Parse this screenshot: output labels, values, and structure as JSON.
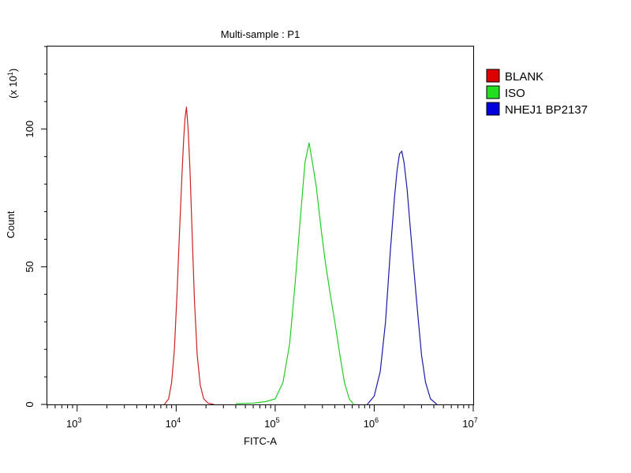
{
  "chart_data": {
    "type": "line",
    "title": "Multi-sample : P1",
    "xlabel": "FITC-A",
    "ylabel": "Count",
    "y_multiplier": "(x 10",
    "y_multiplier_exp": "1",
    "y_multiplier_close": ")",
    "x_scale": "log",
    "xlim": [
      500,
      10000000
    ],
    "ylim": [
      0,
      130
    ],
    "x_ticks": [
      {
        "base": "10",
        "exp": "3",
        "value": 1000
      },
      {
        "base": "10",
        "exp": "4",
        "value": 10000
      },
      {
        "base": "10",
        "exp": "5",
        "value": 100000
      },
      {
        "base": "10",
        "exp": "6",
        "value": 1000000
      },
      {
        "base": "10",
        "exp": "7",
        "value": 10000000
      }
    ],
    "y_ticks": [
      {
        "label": "0",
        "value": 0
      },
      {
        "label": "50",
        "value": 50
      },
      {
        "label": "100",
        "value": 100
      }
    ],
    "grid": false,
    "legend_position": "right",
    "series": [
      {
        "name": "BLANK",
        "color": "#cc2222",
        "legend_color": "#dd0000",
        "x": [
          7600,
          8400,
          9000,
          9600,
          10200,
          10800,
          11400,
          11900,
          12300,
          12700,
          13200,
          13800,
          14500,
          15300,
          16300,
          17500,
          19000,
          21000,
          24000
        ],
        "y": [
          0,
          2,
          8,
          20,
          40,
          62,
          82,
          96,
          104,
          108,
          100,
          85,
          62,
          38,
          18,
          7,
          2,
          0.5,
          0
        ]
      },
      {
        "name": "ISO",
        "color": "#22cc22",
        "legend_color": "#22dd22",
        "x": [
          40000,
          60000,
          80000,
          100000,
          120000,
          140000,
          160000,
          180000,
          200000,
          220000,
          240000,
          260000,
          290000,
          320000,
          360000,
          400000,
          450000,
          500000,
          560000,
          620000
        ],
        "y": [
          0.3,
          0.5,
          1,
          2,
          8,
          22,
          45,
          68,
          88,
          95,
          87,
          79,
          64,
          52,
          40,
          30,
          18,
          8,
          2,
          0
        ]
      },
      {
        "name": "NHEJ1 BP2137",
        "color": "#1a1aaa",
        "legend_color": "#0000dd",
        "x": [
          850000,
          1000000,
          1150000,
          1300000,
          1450000,
          1600000,
          1700000,
          1800000,
          1900000,
          2000000,
          2150000,
          2300000,
          2500000,
          2750000,
          3000000,
          3300000,
          3700000,
          4300000
        ],
        "y": [
          0,
          3,
          12,
          30,
          55,
          75,
          85,
          91,
          92,
          88,
          78,
          65,
          50,
          33,
          18,
          8,
          2,
          0
        ]
      }
    ]
  }
}
